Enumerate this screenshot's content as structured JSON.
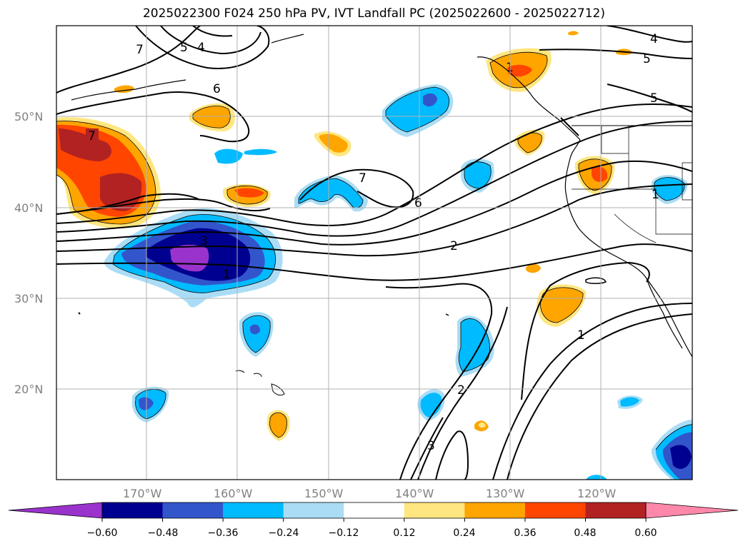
{
  "title": "2025022300 F024 250 hPa PV, IVT Landfall PC (2025022600 - 2025022712)",
  "map": {
    "lat_labels": [
      "50°N",
      "40°N",
      "30°N",
      "20°N"
    ],
    "lon_labels": [
      "170°W",
      "160°W",
      "150°W",
      "140°W",
      "130°W",
      "120°W"
    ],
    "gridlines": true
  },
  "contour_labels": [
    "7",
    "3",
    "5",
    "4",
    "6",
    "7",
    "7",
    "6",
    "2",
    "1",
    "1",
    "2",
    "3",
    "1",
    "4",
    "5",
    "5",
    "1"
  ],
  "colorbar": {
    "ticks": [
      "−0.60",
      "−0.48",
      "−0.36",
      "−0.24",
      "−0.12",
      "0.12",
      "0.24",
      "0.36",
      "0.48",
      "0.60"
    ],
    "colors": [
      "#9933cc",
      "#000090",
      "#3355cc",
      "#00bbff",
      "#aaddf5",
      "#ffffff",
      "#ffe680",
      "#ffa500",
      "#ff4500",
      "#b22222",
      "#ff88aa"
    ],
    "extend": "both"
  }
}
